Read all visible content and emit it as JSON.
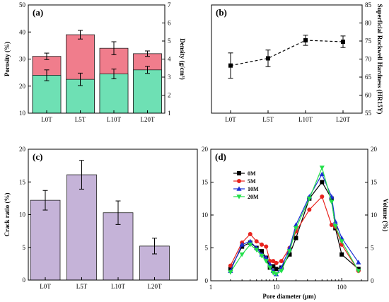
{
  "chart_data": [
    {
      "panel": "(a)",
      "type": "bar",
      "categories": [
        "L0T",
        "L5T",
        "L10T",
        "L20T"
      ],
      "ylabel": "Porosity (%)",
      "ylabel_right": "Density (g/cm³)",
      "ylim": [
        10,
        50
      ],
      "ylim_right": [
        1,
        7
      ],
      "yticks": [
        "10",
        "20",
        "30",
        "40",
        "50"
      ],
      "yticks_right": [
        "1",
        "2",
        "3",
        "4",
        "5",
        "6",
        "7"
      ],
      "series": [
        {
          "values": [
            31.0,
            39.0,
            34.0,
            32.0
          ],
          "errors": [
            1.2,
            1.6,
            2.4,
            1.0
          ],
          "color": "#f07d8c"
        },
        {
          "values": [
            24.0,
            22.5,
            24.5,
            26.0
          ],
          "errors": [
            2.0,
            2.3,
            1.8,
            1.3
          ],
          "color": "#6ee0b4"
        }
      ],
      "grid": false
    },
    {
      "panel": "(b)",
      "type": "line",
      "categories": [
        "L0T",
        "L5T",
        "L10T",
        "L20T"
      ],
      "ylabel": "Superficial Rockwell Hardness (HR15Y)",
      "ylim": [
        55,
        85
      ],
      "yticks": [
        "55",
        "60",
        "65",
        "70",
        "75",
        "80",
        "85"
      ],
      "series": [
        {
          "values": [
            68.2,
            70.2,
            75.2,
            74.8
          ],
          "errors": [
            3.5,
            2.3,
            1.4,
            1.6
          ],
          "style": "dashed",
          "marker": "square"
        }
      ],
      "grid": false
    },
    {
      "panel": "(c)",
      "type": "bar",
      "categories": [
        "L0T",
        "L5T",
        "L10T",
        "L20T"
      ],
      "ylabel": "Crack ratio (%)",
      "ylim": [
        0,
        20
      ],
      "yticks": [
        "0",
        "5",
        "10",
        "15",
        "20"
      ],
      "series": [
        {
          "values": [
            12.2,
            16.1,
            10.3,
            5.2
          ],
          "errors": [
            1.5,
            2.2,
            1.8,
            1.2
          ],
          "color": "#c5b3d8"
        }
      ],
      "grid": false
    },
    {
      "panel": "(d)",
      "type": "line",
      "xscale": "log",
      "xlabel": "Pore diameter (µm)",
      "ylabel": "Volume (%)",
      "xlim": [
        1,
        250
      ],
      "ylim": [
        0,
        20
      ],
      "xticks": [
        1,
        10,
        100
      ],
      "xtick_labels": [
        "1",
        "10",
        "100"
      ],
      "yticks": [
        "0",
        "5",
        "10",
        "15",
        "20"
      ],
      "yticks_right": [
        "0",
        "5",
        "10",
        "15",
        "20"
      ],
      "legend": "top-left",
      "x": [
        2,
        3,
        4,
        5,
        6,
        7,
        8,
        9,
        10,
        12,
        16,
        20,
        32,
        50,
        70,
        80,
        100,
        180
      ],
      "series": [
        {
          "name": "0M",
          "color": "#000000",
          "marker": "square",
          "values": [
            1.8,
            5.2,
            5.8,
            5.0,
            4.5,
            3.5,
            2.0,
            2.2,
            1.8,
            2.0,
            4.0,
            6.5,
            12.5,
            15.0,
            12.5,
            8.0,
            4.0,
            1.8
          ]
        },
        {
          "name": "5M",
          "color": "#e8231e",
          "marker": "circle",
          "values": [
            2.3,
            5.8,
            7.1,
            6.0,
            5.5,
            5.2,
            3.0,
            3.0,
            2.7,
            3.0,
            5.0,
            7.5,
            10.8,
            12.8,
            8.5,
            8.2,
            5.5,
            1.5
          ]
        },
        {
          "name": "10M",
          "color": "#1a2fd4",
          "marker": "triangle-up",
          "values": [
            1.5,
            5.5,
            6.0,
            5.0,
            4.0,
            3.5,
            2.5,
            1.5,
            1.0,
            2.0,
            5.0,
            8.5,
            12.8,
            16.2,
            12.8,
            9.0,
            6.5,
            2.8
          ]
        },
        {
          "name": "20M",
          "color": "#22e04a",
          "marker": "triangle-down",
          "values": [
            1.3,
            4.0,
            5.5,
            4.7,
            3.8,
            3.0,
            2.0,
            1.2,
            1.0,
            1.5,
            4.5,
            8.0,
            12.5,
            17.2,
            12.0,
            8.3,
            6.0,
            1.5
          ]
        }
      ],
      "grid": false
    }
  ]
}
